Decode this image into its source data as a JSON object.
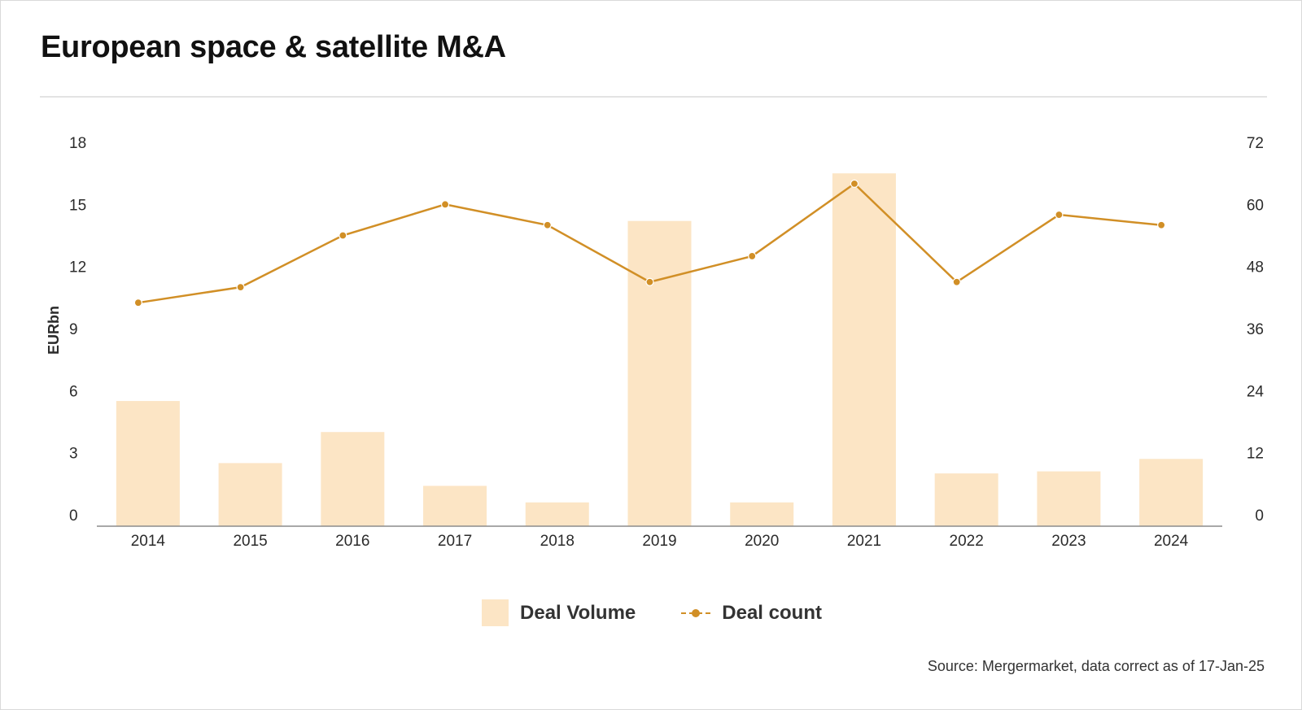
{
  "title": "European space & satellite M&A",
  "source": "Source: Mergermarket, data correct as of 17-Jan-25",
  "legend": {
    "volume_label": "Deal Volume",
    "count_label": "Deal count"
  },
  "colors": {
    "bar": "#fce5c5",
    "line": "#d18f26",
    "axis": "#8c8c8c",
    "divider": "#e3e3e3"
  },
  "chart_data": {
    "type": "bar",
    "categories": [
      "2014",
      "2015",
      "2016",
      "2017",
      "2018",
      "2019",
      "2020",
      "2021",
      "2022",
      "2023",
      "2024"
    ],
    "series": [
      {
        "name": "Deal Volume",
        "type": "bar",
        "axis": "left",
        "values": [
          5.5,
          2.5,
          4.0,
          1.4,
          0.6,
          14.2,
          0.6,
          16.5,
          2.0,
          2.1,
          2.7
        ]
      },
      {
        "name": "Deal count",
        "type": "line",
        "axis": "left_secondary",
        "values": [
          41,
          44,
          54,
          60,
          56,
          45,
          50,
          64,
          45,
          58,
          56
        ]
      }
    ],
    "ylabel": "EURbn",
    "ylim": [
      0,
      18
    ],
    "yticks": [
      0,
      3,
      6,
      9,
      12,
      15,
      18
    ],
    "y2lim": [
      0,
      72
    ],
    "y2ticks": [
      0,
      12,
      24,
      36,
      48,
      60,
      72
    ],
    "grid": false,
    "legend_position": "bottom-center"
  }
}
